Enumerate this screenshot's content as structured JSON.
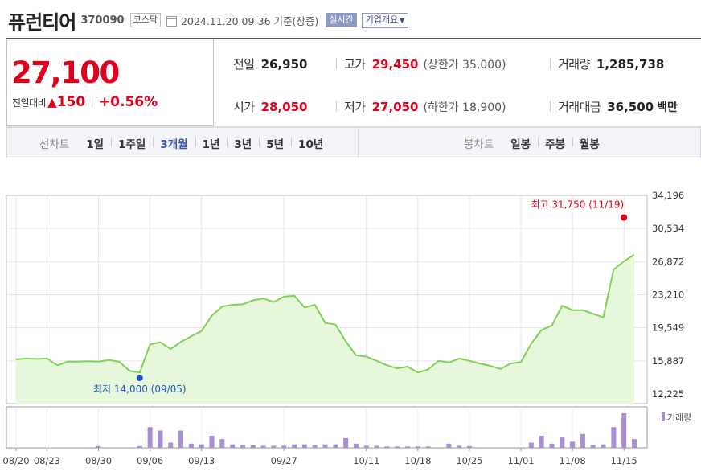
{
  "header": {
    "title": "퓨런티어",
    "code": "370090",
    "market": "코스닥",
    "datetime": "2024.11.20 09:36",
    "basis": "기준(장중)",
    "realtime_label": "실시간",
    "company_label": "기업개요"
  },
  "quote": {
    "price": "27,100",
    "change_label": "전일대비",
    "change_value": "150",
    "change_rate": "+0.56%",
    "prev_close_label": "전일",
    "prev_close": "26,950",
    "open_label": "시가",
    "open": "28,050",
    "high_label": "고가",
    "high": "29,450",
    "upper_limit": "(상한가 35,000)",
    "low_label": "저가",
    "low": "27,050",
    "lower_limit": "(하한가 18,900)",
    "volume_label": "거래량",
    "volume": "1,285,738",
    "amount_label": "거래대금",
    "amount": "36,500",
    "amount_unit": "백만"
  },
  "tabs": {
    "line_label": "선차트",
    "line_items": [
      "1일",
      "1주일",
      "3개월",
      "1년",
      "3년",
      "5년",
      "10년"
    ],
    "active_line": "3개월",
    "candle_label": "봉차트",
    "candle_items": [
      "일봉",
      "주봉",
      "월봉"
    ]
  },
  "chart_data": {
    "type": "area",
    "y_ticks": [
      "34,196",
      "30,534",
      "26,872",
      "23,210",
      "19,549",
      "15,887",
      "12,225"
    ],
    "ylim": [
      12225,
      34196
    ],
    "x_tick_labels": [
      "08/20",
      "08/23",
      "08/30",
      "09/06",
      "09/13",
      "09/27",
      "10/11",
      "10/18",
      "10/25",
      "11/01",
      "11/08",
      "11/15"
    ],
    "x_tick_index": [
      0,
      3,
      8,
      13,
      18,
      26,
      34,
      39,
      44,
      49,
      54,
      59
    ],
    "prices": [
      16050,
      16150,
      16100,
      16150,
      15400,
      15800,
      15800,
      15850,
      15800,
      16000,
      15800,
      14800,
      14600,
      17700,
      17950,
      17200,
      18000,
      18600,
      19200,
      20900,
      21900,
      22100,
      22150,
      22600,
      22800,
      22400,
      23000,
      23100,
      21800,
      22100,
      20100,
      19900,
      18050,
      16500,
      16350,
      15900,
      15400,
      15050,
      15250,
      14600,
      14950,
      15900,
      15700,
      16150,
      15900,
      15600,
      15350,
      15000,
      15600,
      15750,
      17800,
      19300,
      19800,
      22000,
      21500,
      21500,
      21100,
      20700,
      26000,
      26900,
      27650
    ],
    "volumes": [
      0,
      0,
      0,
      0,
      0,
      0,
      0,
      0,
      0.05,
      0,
      0,
      0,
      0.05,
      0.6,
      0.5,
      0.15,
      0.5,
      0.12,
      0.1,
      0.35,
      0.25,
      0.1,
      0.08,
      0.08,
      0.06,
      0.06,
      0.06,
      0.1,
      0.1,
      0.08,
      0.1,
      0.1,
      0.28,
      0.12,
      0.06,
      0.06,
      0.04,
      0.04,
      0.04,
      0.04,
      0.04,
      0,
      0.12,
      0.06,
      0.05,
      0,
      0,
      0,
      0,
      0,
      0.15,
      0.35,
      0.12,
      0.3,
      0.18,
      0.4,
      0.08,
      0.1,
      0.6,
      1.0,
      0.25
    ],
    "volume_legend": "거래량",
    "high_annotation": "최고 31,750 (11/19)",
    "high_value": 31750,
    "high_index": 59,
    "low_annotation": "최저 14,000 (09/05)",
    "low_value": 14000,
    "low_index": 12,
    "colors": {
      "line": "#7fd257",
      "fill": "#e6f7dc",
      "volume": "#a88fd4",
      "high": "#e0001b",
      "low": "#1a56c4"
    }
  }
}
